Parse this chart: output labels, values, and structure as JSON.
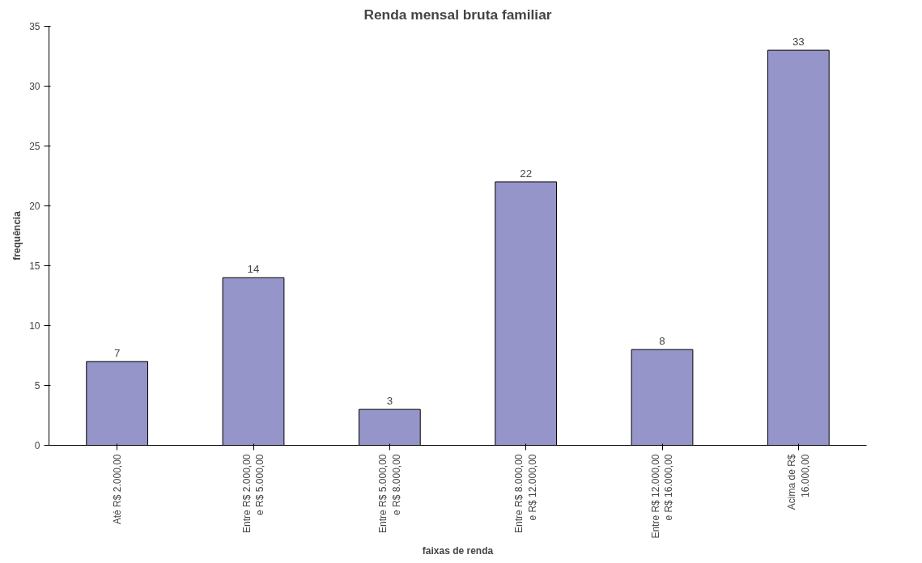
{
  "chart_data": {
    "type": "bar",
    "title": "Renda mensal bruta familiar",
    "xlabel": "faixas de renda",
    "ylabel": "frequência",
    "categories": [
      "Até R$ 2.000,00",
      "Entre R$ 2.000,00\ne R$ 5.000,00",
      "Entre R$ 5.000,00\ne R$ 8.000,00",
      "Entre R$ 8.000,00\ne R$ 12.000,00",
      "Entre R$ 12.000,00\ne R$ 16.000,00",
      "Acima de R$\n16.000,00"
    ],
    "values": [
      7,
      14,
      3,
      22,
      8,
      33
    ],
    "color": "#9595c9",
    "ylim": [
      0,
      35
    ],
    "yticks": [
      0,
      5,
      10,
      15,
      20,
      25,
      30,
      35
    ],
    "data_labels": true,
    "grid": false
  }
}
